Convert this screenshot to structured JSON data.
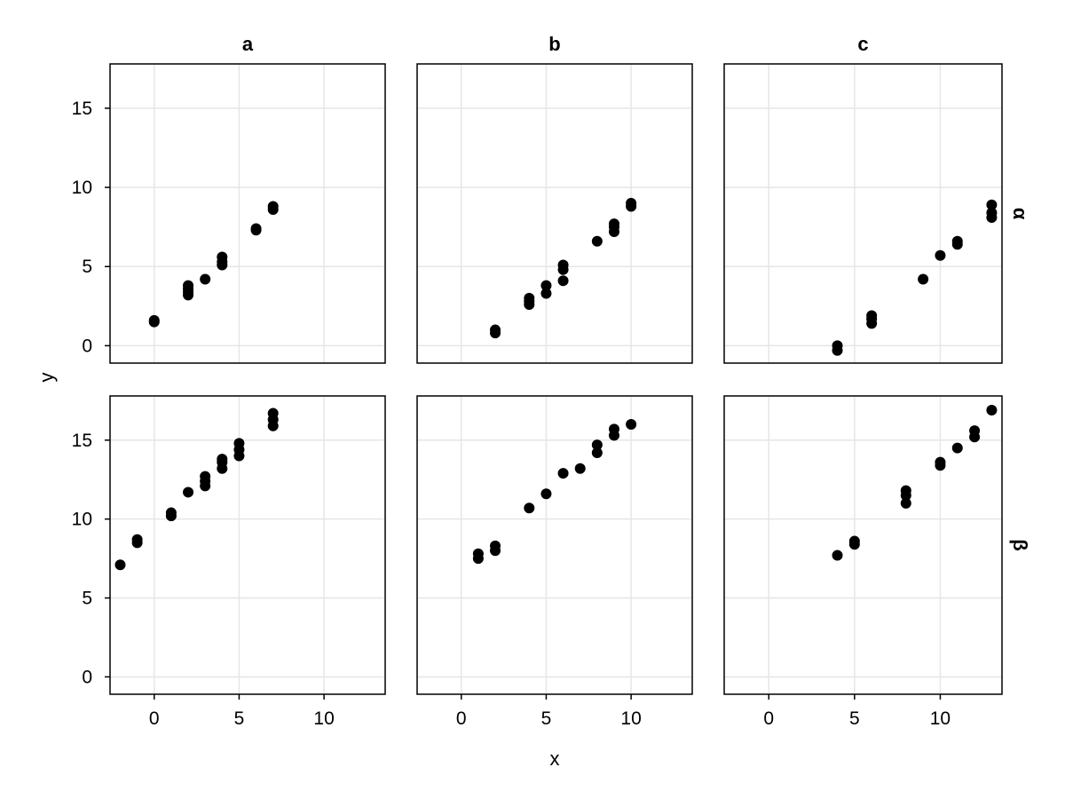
{
  "chart_data": {
    "type": "scatter",
    "xlabel": "x",
    "ylabel": "y",
    "xlim": [
      -2.6,
      13.6
    ],
    "ylim": [
      -1.1,
      17.8
    ],
    "xticks": [
      0,
      5,
      10
    ],
    "yticks": [
      0,
      5,
      10,
      15
    ],
    "grid": true,
    "marker_color": "#000000",
    "grid_color": "#e6e6e6",
    "columns": [
      "a",
      "b",
      "c"
    ],
    "rows": [
      "α",
      "β"
    ],
    "panels": [
      {
        "row": "α",
        "col": "a",
        "points": [
          [
            0,
            1.5
          ],
          [
            0,
            1.6
          ],
          [
            2,
            3.2
          ],
          [
            2,
            3.4
          ],
          [
            2,
            3.6
          ],
          [
            2,
            3.8
          ],
          [
            3,
            4.2
          ],
          [
            4,
            5.1
          ],
          [
            4,
            5.3
          ],
          [
            4,
            5.6
          ],
          [
            6,
            7.3
          ],
          [
            6,
            7.4
          ],
          [
            7,
            8.6
          ],
          [
            7,
            8.8
          ]
        ]
      },
      {
        "row": "α",
        "col": "b",
        "points": [
          [
            2,
            0.8
          ],
          [
            2,
            1.0
          ],
          [
            4,
            2.6
          ],
          [
            4,
            2.8
          ],
          [
            4,
            3.0
          ],
          [
            5,
            3.3
          ],
          [
            5,
            3.8
          ],
          [
            6,
            4.1
          ],
          [
            6,
            4.8
          ],
          [
            6,
            5.1
          ],
          [
            8,
            6.6
          ],
          [
            9,
            7.2
          ],
          [
            9,
            7.5
          ],
          [
            9,
            7.7
          ],
          [
            10,
            8.8
          ],
          [
            10,
            9.0
          ]
        ]
      },
      {
        "row": "α",
        "col": "c",
        "points": [
          [
            4,
            -0.3
          ],
          [
            4,
            0.0
          ],
          [
            6,
            1.4
          ],
          [
            6,
            1.7
          ],
          [
            6,
            1.9
          ],
          [
            9,
            4.2
          ],
          [
            10,
            5.7
          ],
          [
            11,
            6.4
          ],
          [
            11,
            6.6
          ],
          [
            13,
            8.1
          ],
          [
            13,
            8.4
          ],
          [
            13,
            8.9
          ]
        ]
      },
      {
        "row": "β",
        "col": "a",
        "points": [
          [
            -2,
            7.1
          ],
          [
            -1,
            8.5
          ],
          [
            -1,
            8.7
          ],
          [
            1,
            10.2
          ],
          [
            1,
            10.4
          ],
          [
            2,
            11.7
          ],
          [
            3,
            12.1
          ],
          [
            3,
            12.4
          ],
          [
            3,
            12.7
          ],
          [
            4,
            13.2
          ],
          [
            4,
            13.6
          ],
          [
            4,
            13.8
          ],
          [
            5,
            14.0
          ],
          [
            5,
            14.4
          ],
          [
            5,
            14.8
          ],
          [
            7,
            15.9
          ],
          [
            7,
            16.3
          ],
          [
            7,
            16.7
          ]
        ]
      },
      {
        "row": "β",
        "col": "b",
        "points": [
          [
            1,
            7.5
          ],
          [
            1,
            7.8
          ],
          [
            2,
            8.0
          ],
          [
            2,
            8.3
          ],
          [
            4,
            10.7
          ],
          [
            5,
            11.6
          ],
          [
            6,
            12.9
          ],
          [
            7,
            13.2
          ],
          [
            8,
            14.2
          ],
          [
            8,
            14.7
          ],
          [
            9,
            15.3
          ],
          [
            9,
            15.7
          ],
          [
            10,
            16.0
          ]
        ]
      },
      {
        "row": "β",
        "col": "c",
        "points": [
          [
            4,
            7.7
          ],
          [
            5,
            8.4
          ],
          [
            5,
            8.6
          ],
          [
            8,
            11.0
          ],
          [
            8,
            11.5
          ],
          [
            8,
            11.8
          ],
          [
            10,
            13.4
          ],
          [
            10,
            13.6
          ],
          [
            11,
            14.5
          ],
          [
            12,
            15.2
          ],
          [
            12,
            15.6
          ],
          [
            13,
            16.9
          ]
        ]
      }
    ]
  }
}
